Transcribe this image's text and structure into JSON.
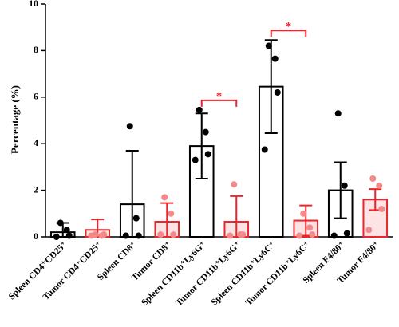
{
  "chart_data": {
    "type": "bar",
    "y_label": "Percentage (%)",
    "categories": [
      "Spleen CD4⁺CD25⁺",
      "Tumor CD4⁺CD25⁺",
      "Spleen CD8⁺",
      "Tumor CD8⁺",
      "Spleen CD11b⁺Ly6G⁺",
      "Tumor CD11b⁺Ly6G⁺",
      "Spleen CD11b⁺Ly6C⁺",
      "Tumor CD11b⁺Ly6C⁺",
      "Spleen F4/80⁺",
      "Tumor F4/80⁺"
    ],
    "values": [
      0.2,
      0.3,
      1.4,
      0.65,
      3.9,
      0.65,
      6.45,
      0.7,
      2.0,
      1.6
    ],
    "errors": [
      0.4,
      0.45,
      2.3,
      0.8,
      1.4,
      1.1,
      2.0,
      0.65,
      1.2,
      0.45
    ],
    "points": [
      [
        0.6,
        0.3,
        0.05,
        0.0
      ],
      [
        0.1,
        0.05,
        0.1,
        0.05
      ],
      [
        4.75,
        0.8,
        0.05,
        0.05
      ],
      [
        1.7,
        1.0,
        0.1,
        0.1
      ],
      [
        5.45,
        4.5,
        3.55,
        3.3
      ],
      [
        2.25,
        0.1,
        0.1,
        0.05
      ],
      [
        8.2,
        7.65,
        6.2,
        3.75
      ],
      [
        1.0,
        0.4,
        0.1,
        0.05
      ],
      [
        5.3,
        2.2,
        0.15,
        0.05
      ],
      [
        2.5,
        2.2,
        1.2,
        0.3
      ]
    ],
    "edge_colors": [
      "#000000",
      "#e8262b",
      "#000000",
      "#e8262b",
      "#000000",
      "#e8262b",
      "#000000",
      "#e8262b",
      "#000000",
      "#e8262b"
    ],
    "fill_colors": [
      "#ffffff",
      "#fde3e3",
      "#ffffff",
      "#fde3e3",
      "#ffffff",
      "#fde3e3",
      "#ffffff",
      "#fde3e3",
      "#ffffff",
      "#fde3e3"
    ],
    "point_colors": [
      "#000000",
      "#f28a8a",
      "#000000",
      "#f28a8a",
      "#000000",
      "#f28a8a",
      "#000000",
      "#f28a8a",
      "#000000",
      "#f28a8a"
    ],
    "annotations": [
      {
        "text": "*",
        "between": [
          4,
          5
        ],
        "color": "#e8262b"
      },
      {
        "text": "*",
        "between": [
          6,
          7
        ],
        "color": "#e8262b"
      }
    ],
    "ylim": [
      0,
      10
    ],
    "yticks": [
      0,
      2,
      4,
      6,
      8,
      10
    ]
  }
}
